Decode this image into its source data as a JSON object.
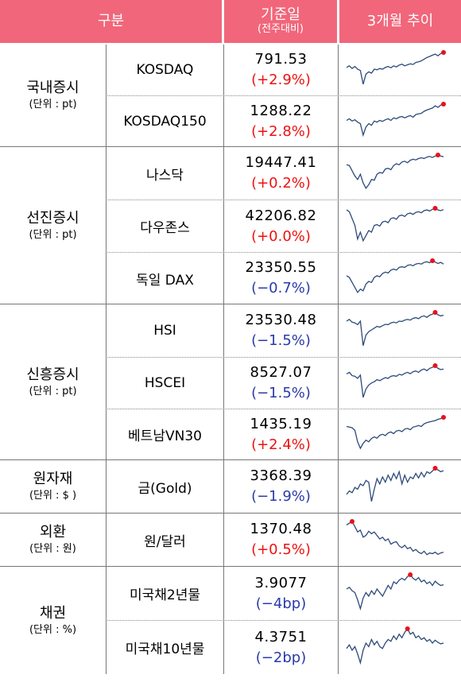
{
  "header": {
    "col1": "구분",
    "col2_main": "기준일",
    "col2_sub": "(전주대비)",
    "col3": "3개월 추이"
  },
  "groups": [
    {
      "name": "국내증시",
      "unit": "(단위 : pt)"
    },
    {
      "name": "선진증시",
      "unit": "(단위 : pt)"
    },
    {
      "name": "신흥증시",
      "unit": "(단위 : pt)"
    },
    {
      "name": "원자재",
      "unit": "(단위 : $ )"
    },
    {
      "name": "외환",
      "unit": "(단위 : 원)"
    },
    {
      "name": "채권",
      "unit": "(단위 : %)"
    }
  ],
  "rows": [
    {
      "name": "KOSDAQ",
      "value": "791.53",
      "change": "(+2.9%)",
      "direction": "up",
      "trend": [
        0.55,
        0.6,
        0.52,
        0.58,
        0.5,
        0.46,
        0.05,
        0.35,
        0.42,
        0.38,
        0.5,
        0.48,
        0.52,
        0.5,
        0.55,
        0.58,
        0.54,
        0.6,
        0.57,
        0.62,
        0.65,
        0.6,
        0.63,
        0.66,
        0.64,
        0.7,
        0.72,
        0.75,
        0.8,
        0.85,
        0.88,
        0.92,
        0.95,
        0.9,
        0.97,
        1.0
      ]
    },
    {
      "name": "KOSDAQ150",
      "value": "1288.22",
      "change": "(+2.8%)",
      "direction": "up",
      "trend": [
        0.5,
        0.55,
        0.48,
        0.52,
        0.45,
        0.4,
        0.05,
        0.3,
        0.4,
        0.35,
        0.48,
        0.45,
        0.5,
        0.47,
        0.52,
        0.55,
        0.5,
        0.58,
        0.55,
        0.6,
        0.62,
        0.58,
        0.62,
        0.65,
        0.6,
        0.68,
        0.7,
        0.72,
        0.78,
        0.82,
        0.85,
        0.88,
        0.95,
        0.9,
        0.97,
        1.0
      ]
    },
    {
      "name": "나스닥",
      "value": "19447.41",
      "change": "(+0.2%)",
      "direction": "up",
      "trend": [
        0.72,
        0.7,
        0.55,
        0.4,
        0.3,
        0.45,
        0.2,
        0.05,
        0.15,
        0.3,
        0.28,
        0.45,
        0.5,
        0.48,
        0.6,
        0.62,
        0.58,
        0.7,
        0.75,
        0.72,
        0.8,
        0.82,
        0.78,
        0.85,
        0.88,
        0.86,
        0.9,
        0.92,
        0.9,
        0.94,
        0.96,
        0.93,
        0.97,
        1.0,
        0.97,
        0.95
      ]
    },
    {
      "name": "다우존스",
      "value": "42206.82",
      "change": "(+0.0%)",
      "direction": "up",
      "trend": [
        0.95,
        0.9,
        0.7,
        0.5,
        0.1,
        0.3,
        0.05,
        0.2,
        0.35,
        0.3,
        0.5,
        0.52,
        0.48,
        0.6,
        0.62,
        0.58,
        0.7,
        0.72,
        0.68,
        0.78,
        0.8,
        0.76,
        0.84,
        0.86,
        0.82,
        0.88,
        0.9,
        0.87,
        0.93,
        0.95,
        0.92,
        0.97,
        1.0,
        0.95,
        0.93,
        0.96
      ]
    },
    {
      "name": "독일 DAX",
      "value": "23350.55",
      "change": "(−0.7%)",
      "direction": "down",
      "trend": [
        0.55,
        0.5,
        0.35,
        0.2,
        0.05,
        0.15,
        0.1,
        0.3,
        0.38,
        0.35,
        0.5,
        0.55,
        0.52,
        0.62,
        0.66,
        0.63,
        0.72,
        0.75,
        0.72,
        0.8,
        0.82,
        0.8,
        0.86,
        0.88,
        0.85,
        0.9,
        0.92,
        0.9,
        0.95,
        0.97,
        0.94,
        1.0,
        0.96,
        0.92,
        0.95,
        0.9
      ]
    },
    {
      "name": "HSI",
      "value": "23530.48",
      "change": "(−1.5%)",
      "direction": "down",
      "trend": [
        0.75,
        0.8,
        0.72,
        0.7,
        0.65,
        0.75,
        0.05,
        0.35,
        0.45,
        0.5,
        0.55,
        0.6,
        0.58,
        0.62,
        0.66,
        0.65,
        0.7,
        0.72,
        0.7,
        0.75,
        0.74,
        0.78,
        0.8,
        0.78,
        0.83,
        0.85,
        0.82,
        0.88,
        0.9,
        0.86,
        0.92,
        0.95,
        1.0,
        0.93,
        0.9,
        0.92
      ]
    },
    {
      "name": "HSCEI",
      "value": "8527.07",
      "change": "(−1.5%)",
      "direction": "down",
      "trend": [
        0.75,
        0.8,
        0.7,
        0.68,
        0.62,
        0.72,
        0.05,
        0.3,
        0.42,
        0.48,
        0.52,
        0.58,
        0.55,
        0.6,
        0.64,
        0.62,
        0.68,
        0.7,
        0.68,
        0.74,
        0.72,
        0.77,
        0.8,
        0.76,
        0.82,
        0.84,
        0.8,
        0.87,
        0.9,
        0.85,
        0.92,
        0.95,
        1.0,
        0.92,
        0.88,
        0.9
      ]
    },
    {
      "name": "베트남VN30",
      "value": "1435.19",
      "change": "(+2.4%)",
      "direction": "up",
      "trend": [
        0.72,
        0.7,
        0.68,
        0.6,
        0.25,
        0.05,
        0.2,
        0.3,
        0.25,
        0.35,
        0.4,
        0.36,
        0.45,
        0.48,
        0.44,
        0.52,
        0.55,
        0.5,
        0.58,
        0.6,
        0.56,
        0.64,
        0.66,
        0.62,
        0.7,
        0.72,
        0.75,
        0.72,
        0.8,
        0.84,
        0.86,
        0.88,
        0.9,
        0.94,
        0.96,
        1.0
      ]
    },
    {
      "name": "금(Gold)",
      "value": "3368.39",
      "change": "(−1.9%)",
      "direction": "down",
      "trend": [
        0.25,
        0.35,
        0.3,
        0.45,
        0.4,
        0.55,
        0.5,
        0.65,
        0.6,
        0.05,
        0.4,
        0.7,
        0.55,
        0.75,
        0.6,
        0.8,
        0.65,
        0.85,
        0.7,
        0.9,
        0.55,
        0.8,
        0.6,
        0.75,
        0.7,
        0.85,
        0.72,
        0.88,
        0.75,
        0.9,
        0.85,
        0.92,
        1.0,
        0.95,
        0.9,
        0.93
      ]
    },
    {
      "name": "원/달러",
      "value": "1370.48",
      "change": "(+0.5%)",
      "direction": "up",
      "trend": [
        0.9,
        0.95,
        1.0,
        0.85,
        0.7,
        0.75,
        0.55,
        0.6,
        0.72,
        0.65,
        0.7,
        0.6,
        0.5,
        0.55,
        0.45,
        0.5,
        0.35,
        0.4,
        0.42,
        0.3,
        0.25,
        0.32,
        0.22,
        0.26,
        0.15,
        0.2,
        0.12,
        0.08,
        0.15,
        0.05,
        0.1,
        0.08,
        0.12,
        0.06,
        0.1,
        0.12
      ]
    },
    {
      "name": "미국채2년물",
      "value": "3.9077",
      "change": "(−4bp)",
      "direction": "down",
      "trend": [
        0.6,
        0.65,
        0.55,
        0.5,
        0.3,
        0.05,
        0.35,
        0.5,
        0.4,
        0.55,
        0.45,
        0.6,
        0.5,
        0.4,
        0.55,
        0.7,
        0.6,
        0.8,
        0.75,
        0.85,
        0.9,
        0.85,
        0.95,
        1.0,
        0.9,
        0.85,
        0.92,
        0.8,
        0.85,
        0.75,
        0.8,
        0.7,
        0.82,
        0.75,
        0.7,
        0.72
      ]
    },
    {
      "name": "미국채10년물",
      "value": "4.3751",
      "change": "(−2bp)",
      "direction": "down",
      "trend": [
        0.45,
        0.55,
        0.4,
        0.5,
        0.3,
        0.05,
        0.4,
        0.6,
        0.5,
        0.7,
        0.55,
        0.65,
        0.5,
        0.45,
        0.6,
        0.7,
        0.65,
        0.8,
        0.7,
        0.85,
        0.75,
        0.9,
        1.0,
        0.85,
        0.9,
        0.75,
        0.8,
        0.7,
        0.75,
        0.65,
        0.7,
        0.6,
        0.68,
        0.62,
        0.58,
        0.6
      ]
    }
  ],
  "colors": {
    "header_bg": "#f1667a",
    "up": "#ee1111",
    "down": "#2b3aa8",
    "trend_line": "#2c4a7a",
    "trend_marker": "#e8111a"
  }
}
